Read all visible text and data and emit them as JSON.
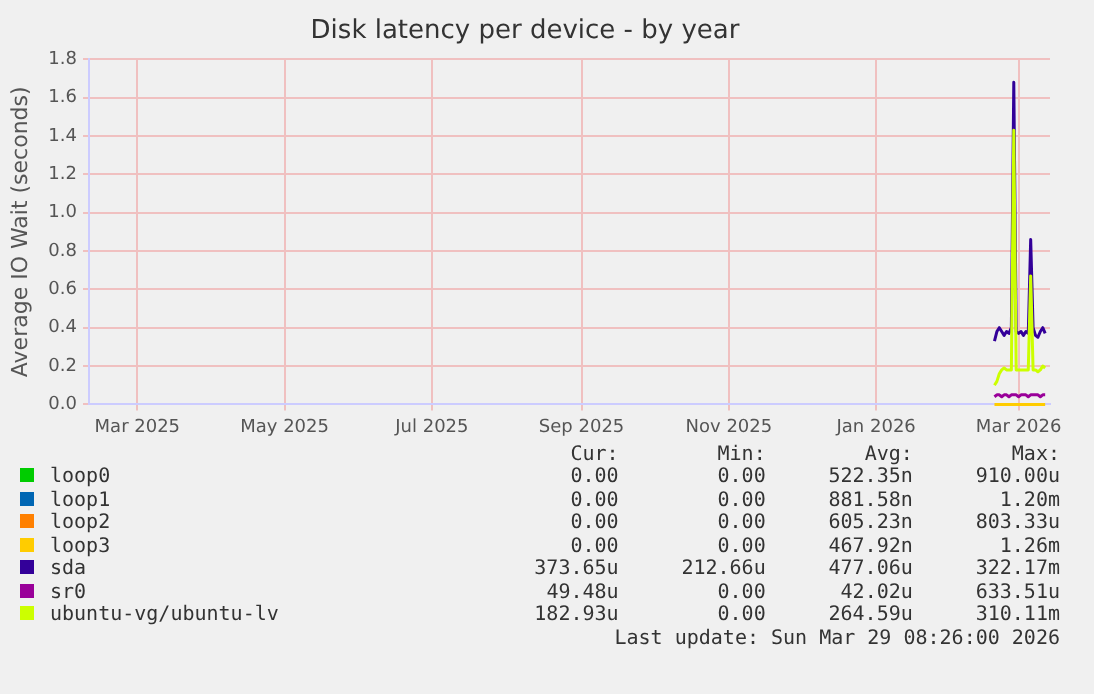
{
  "chart_data": {
    "type": "line",
    "title": "Disk latency per device - by year",
    "ylabel": "Average IO Wait (seconds)",
    "x": [
      "2026-03-06",
      "2026-03-07",
      "2026-03-08",
      "2026-03-09",
      "2026-03-10",
      "2026-03-11",
      "2026-03-12",
      "2026-03-13",
      "2026-03-14",
      "2026-03-15",
      "2026-03-16",
      "2026-03-17",
      "2026-03-18",
      "2026-03-19",
      "2026-03-20",
      "2026-03-21",
      "2026-03-22",
      "2026-03-23",
      "2026-03-24",
      "2026-03-25",
      "2026-03-26",
      "2026-03-27"
    ],
    "xlim": [
      "2025-02-24",
      "2026-03-29"
    ],
    "xticks": [
      {
        "value": "2025-03-16",
        "label": "Mar 2025"
      },
      {
        "value": "2025-05-16",
        "label": "May 2025"
      },
      {
        "value": "2025-07-16",
        "label": "Jul 2025"
      },
      {
        "value": "2025-09-16",
        "label": "Sep 2025"
      },
      {
        "value": "2025-11-16",
        "label": "Nov 2025"
      },
      {
        "value": "2026-01-16",
        "label": "Jan 2026"
      },
      {
        "value": "2026-03-16",
        "label": "Mar 2026"
      }
    ],
    "ylim": [
      0,
      1.8
    ],
    "yticks": [
      {
        "value": 0,
        "label": "0.0"
      },
      {
        "value": 0.2,
        "label": "0.2"
      },
      {
        "value": 0.4,
        "label": "0.4"
      },
      {
        "value": 0.6,
        "label": "0.6"
      },
      {
        "value": 0.8,
        "label": "0.8"
      },
      {
        "value": 1,
        "label": "1.0"
      },
      {
        "value": 1.2,
        "label": "1.2"
      },
      {
        "value": 1.4,
        "label": "1.4"
      },
      {
        "value": 1.6,
        "label": "1.6"
      },
      {
        "value": 1.8,
        "label": "1.8"
      }
    ],
    "grid": true,
    "legend": "bottom",
    "marker": "none",
    "line_style": "solid",
    "series": [
      {
        "name": "loop0",
        "color": "#00cc00",
        "values": [
          null,
          null,
          null,
          null,
          null,
          null,
          null,
          null,
          null,
          null,
          null,
          null,
          null,
          null,
          null,
          null,
          null,
          null,
          null,
          null,
          null,
          null
        ]
      },
      {
        "name": "loop1",
        "color": "#0066b3",
        "values": [
          null,
          null,
          null,
          null,
          null,
          null,
          null,
          null,
          null,
          null,
          null,
          null,
          null,
          null,
          null,
          null,
          null,
          null,
          null,
          null,
          null,
          null
        ]
      },
      {
        "name": "loop2",
        "color": "#ff8000",
        "values": [
          null,
          null,
          null,
          null,
          null,
          null,
          null,
          null,
          null,
          null,
          null,
          null,
          null,
          null,
          null,
          null,
          null,
          null,
          null,
          null,
          null,
          null
        ]
      },
      {
        "name": "loop3",
        "color": "#ffcc00",
        "values": [
          0,
          0,
          0,
          0,
          0,
          0,
          0,
          0,
          0,
          0,
          0,
          0,
          0,
          0,
          0,
          0,
          0,
          0,
          0,
          0,
          0,
          0
        ]
      },
      {
        "name": "sda",
        "color": "#330099",
        "values": [
          0.33,
          0.38,
          0.4,
          0.38,
          0.36,
          0.38,
          0.37,
          0.4,
          1.68,
          0.38,
          0.37,
          0.38,
          0.36,
          0.38,
          0.37,
          0.86,
          0.4,
          0.36,
          0.35,
          0.38,
          0.4,
          0.37
        ]
      },
      {
        "name": "sr0",
        "color": "#990099",
        "values": [
          0.04,
          0.05,
          0.05,
          0.04,
          0.05,
          0.05,
          0.04,
          0.05,
          0.05,
          0.05,
          0.04,
          0.05,
          0.05,
          0.05,
          0.04,
          0.05,
          0.05,
          0.05,
          0.05,
          0.04,
          0.05,
          0.05
        ]
      },
      {
        "name": "ubuntu-vg/ubuntu-lv",
        "color": "#ccff00",
        "values": [
          0.1,
          0.12,
          0.16,
          0.18,
          0.19,
          0.18,
          0.18,
          0.18,
          1.43,
          0.18,
          0.18,
          0.18,
          0.18,
          0.18,
          0.18,
          0.67,
          0.18,
          0.18,
          0.17,
          0.18,
          0.2,
          0.19
        ]
      }
    ],
    "annotations": [
      "Cur:",
      "Min:",
      "Avg:",
      "Max:",
      "0.00",
      "0.00",
      "522.35n",
      "910.00u",
      "0.00",
      "0.00",
      "881.58n",
      "1.20m",
      "0.00",
      "0.00",
      "605.23n",
      "803.33u",
      "0.00",
      "0.00",
      "467.92n",
      "1.26m",
      "373.65u",
      "212.66u",
      "477.06u",
      "322.17m",
      "49.48u",
      "0.00",
      "42.02u",
      "633.51u",
      "182.93u",
      "0.00",
      "264.59u",
      "310.11m",
      "Last update: Sun Mar 29 08:26:00 2026"
    ]
  }
}
